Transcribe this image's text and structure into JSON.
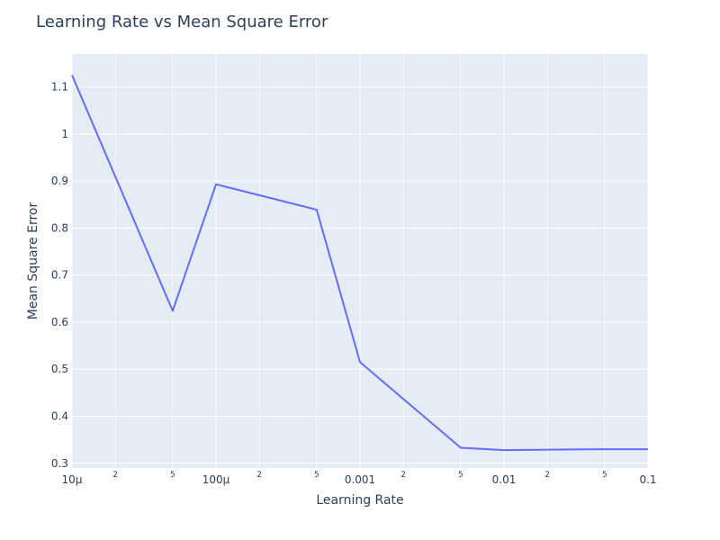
{
  "chart_data": {
    "type": "line",
    "title": "Learning Rate vs Mean Square Error",
    "xlabel": "Learning Rate",
    "ylabel": "Mean Square Error",
    "x_scale": "log",
    "xlim": [
      1e-05,
      0.1
    ],
    "ylim": [
      0.29,
      1.17
    ],
    "grid": true,
    "line_color": "#636efa",
    "plot_bg": "#e5ecf6",
    "x_major_ticks": [
      {
        "value": 1e-05,
        "label": "10µ"
      },
      {
        "value": 0.0001,
        "label": "100µ"
      },
      {
        "value": 0.001,
        "label": "0.001"
      },
      {
        "value": 0.01,
        "label": "0.01"
      },
      {
        "value": 0.1,
        "label": "0.1"
      }
    ],
    "x_minor_ticks": [
      {
        "value": 2e-05,
        "label": "2"
      },
      {
        "value": 5e-05,
        "label": "5"
      },
      {
        "value": 0.0002,
        "label": "2"
      },
      {
        "value": 0.0005,
        "label": "5"
      },
      {
        "value": 0.002,
        "label": "2"
      },
      {
        "value": 0.005,
        "label": "5"
      },
      {
        "value": 0.02,
        "label": "2"
      },
      {
        "value": 0.05,
        "label": "5"
      }
    ],
    "y_ticks": [
      {
        "value": 0.3,
        "label": "0.3"
      },
      {
        "value": 0.4,
        "label": "0.4"
      },
      {
        "value": 0.5,
        "label": "0.5"
      },
      {
        "value": 0.6,
        "label": "0.6"
      },
      {
        "value": 0.7,
        "label": "0.7"
      },
      {
        "value": 0.8,
        "label": "0.8"
      },
      {
        "value": 0.9,
        "label": "0.9"
      },
      {
        "value": 1.0,
        "label": "1"
      },
      {
        "value": 1.1,
        "label": "1.1"
      }
    ],
    "x": [
      1e-05,
      5e-05,
      0.0001,
      0.0005,
      0.001,
      0.005,
      0.01,
      0.05,
      0.1
    ],
    "y": [
      1.125,
      0.624,
      0.893,
      0.839,
      0.515,
      0.333,
      0.328,
      0.33,
      0.33
    ]
  }
}
